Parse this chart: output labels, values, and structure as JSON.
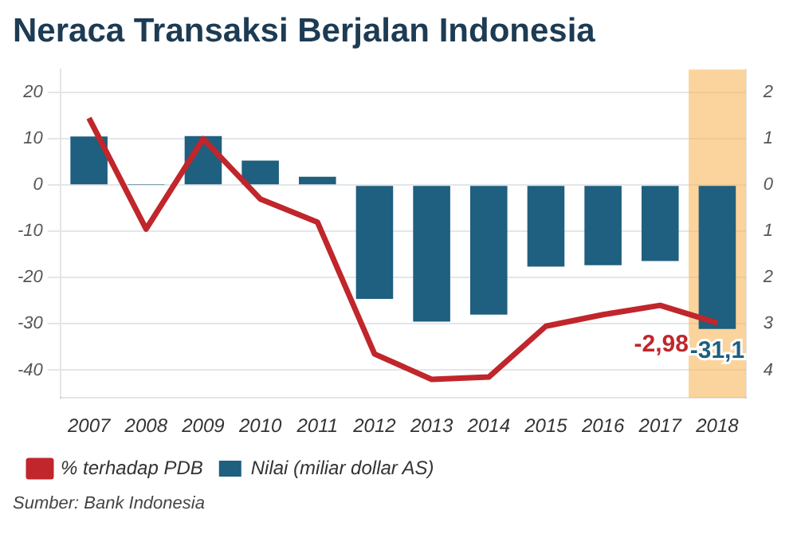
{
  "chart_data": {
    "type": "bar",
    "title": "Neraca Transaksi Berjalan Indonesia",
    "categories": [
      "2007",
      "2008",
      "2009",
      "2010",
      "2011",
      "2012",
      "2013",
      "2014",
      "2015",
      "2016",
      "2017",
      "2018"
    ],
    "series": [
      {
        "name": "Nilai (miliar dollar AS)",
        "color": "#1f5f7f",
        "values": [
          10.5,
          0.1,
          10.6,
          5.3,
          1.8,
          -24.6,
          -29.5,
          -28,
          -17.6,
          -17.3,
          -16.4,
          -31.1
        ],
        "value_labels": [
          null,
          null,
          null,
          null,
          null,
          null,
          null,
          null,
          null,
          null,
          null,
          "-31,1"
        ]
      },
      {
        "name": "% terhadap PDB",
        "type": "line",
        "axis": "y2",
        "color": "#c0262b",
        "values": [
          1.45,
          -0.95,
          1.0,
          -0.3,
          -0.8,
          -3.65,
          -4.2,
          -4.15,
          -3.05,
          -2.8,
          -2.6,
          -2.98
        ],
        "value_labels": [
          null,
          null,
          null,
          null,
          null,
          null,
          null,
          null,
          null,
          null,
          null,
          "-2,98"
        ]
      }
    ],
    "ylim": [
      -46,
      25
    ],
    "yticks": [
      -40,
      -30,
      -20,
      -10,
      0,
      10,
      20
    ],
    "y2lim": [
      -4.6,
      2.5
    ],
    "y2ticks": [
      {
        "value": -4,
        "label": "4"
      },
      {
        "value": -3,
        "label": "3"
      },
      {
        "value": -2,
        "label": "2"
      },
      {
        "value": -1,
        "label": "1"
      },
      0,
      1,
      2
    ],
    "bands": [
      {
        "axis": "x",
        "from": "2018",
        "to": "2018",
        "color": "#f7b85a"
      }
    ],
    "grid": "y",
    "legend": "bottom left",
    "marker": "none",
    "line_style": "solid",
    "annotations": [
      "Sumber: Bank Indonesia"
    ]
  }
}
